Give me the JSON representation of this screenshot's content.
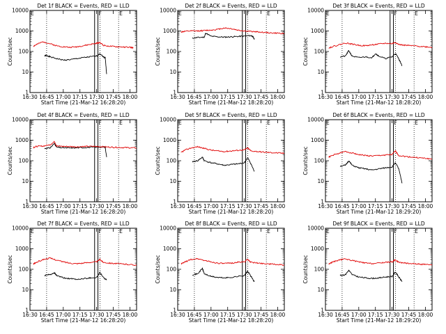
{
  "chart_data": [
    {
      "type": "line",
      "title": "Det 1f BLACK = Events, RED = LLD",
      "xlabel": "Start Time (21-Mar-12 16:28:20)",
      "ylabel": "Counts/sec",
      "xticks": [
        "16:30",
        "16:45",
        "17:00",
        "17:15",
        "17:30",
        "17:45",
        "18:00"
      ],
      "yticks": [
        "1",
        "10",
        "100",
        "1000",
        "10000"
      ],
      "ylim": [
        1,
        10000
      ],
      "yscale": "log",
      "markers": [
        "F",
        "E"
      ],
      "series": [
        {
          "name": "Events",
          "color": "#000000",
          "x": [
            16.72,
            16.75,
            16.8,
            16.9,
            17.0,
            17.1,
            17.2,
            17.3,
            17.4,
            17.5,
            17.55,
            17.6,
            17.63,
            17.65
          ],
          "values": [
            60,
            65,
            55,
            45,
            38,
            40,
            45,
            50,
            55,
            60,
            80,
            55,
            50,
            8
          ]
        },
        {
          "name": "LLD",
          "color": "#e00000",
          "x": [
            16.55,
            16.6,
            16.7,
            16.8,
            16.9,
            17.0,
            17.1,
            17.2,
            17.3,
            17.4,
            17.5,
            17.55,
            17.6,
            17.7,
            17.8,
            17.9,
            18.0,
            18.05
          ],
          "values": [
            180,
            220,
            300,
            240,
            190,
            170,
            160,
            170,
            190,
            220,
            250,
            280,
            200,
            180,
            170,
            165,
            160,
            150
          ]
        }
      ]
    },
    {
      "type": "line",
      "title": "Det 2f BLACK = Events, RED = LLD",
      "xlabel": "Start Time (21-Mar-12 18:28:20)",
      "ylabel": "Counts/sec",
      "xticks": [
        "16:30",
        "16:45",
        "17:00",
        "17:15",
        "17:30",
        "17:45",
        "18:00"
      ],
      "yticks": [
        "1",
        "10",
        "100",
        "1000",
        "10000"
      ],
      "ylim": [
        1,
        10000
      ],
      "yscale": "log",
      "markers": [
        "F",
        "E"
      ],
      "series": [
        {
          "name": "Events",
          "color": "#000000",
          "x": [
            16.72,
            16.8,
            16.9,
            16.92,
            17.0,
            17.1,
            17.2,
            17.3,
            17.4,
            17.5,
            17.6,
            17.63,
            17.65
          ],
          "values": [
            450,
            480,
            500,
            800,
            550,
            520,
            500,
            520,
            540,
            560,
            600,
            520,
            400
          ]
        },
        {
          "name": "LLD",
          "color": "#e00000",
          "x": [
            16.55,
            16.6,
            16.7,
            16.8,
            16.9,
            17.0,
            17.1,
            17.2,
            17.3,
            17.4,
            17.5,
            17.6,
            17.7,
            17.8,
            17.9,
            18.0,
            18.1
          ],
          "values": [
            900,
            950,
            1000,
            1000,
            1050,
            1100,
            1200,
            1400,
            1300,
            1100,
            1000,
            950,
            900,
            850,
            800,
            780,
            750
          ]
        }
      ]
    },
    {
      "type": "line",
      "title": "Det 3f BLACK = Events, RED = LLD",
      "xlabel": "Start Time (21-Mar-12 18:28:20)",
      "ylabel": "Counts/sec",
      "xticks": [
        "16:30",
        "16:45",
        "17:00",
        "17:15",
        "17:30",
        "17:45",
        "18:00"
      ],
      "yticks": [
        "1",
        "10",
        "100",
        "1000",
        "10000"
      ],
      "ylim": [
        1,
        10000
      ],
      "yscale": "log",
      "markers": [
        "F",
        "E"
      ],
      "series": [
        {
          "name": "Events",
          "color": "#000000",
          "x": [
            16.72,
            16.8,
            16.85,
            16.9,
            17.0,
            17.1,
            17.2,
            17.25,
            17.3,
            17.4,
            17.5,
            17.55,
            17.6,
            17.65
          ],
          "values": [
            55,
            60,
            110,
            60,
            50,
            55,
            50,
            80,
            60,
            45,
            55,
            80,
            45,
            20
          ]
        },
        {
          "name": "LLD",
          "color": "#e00000",
          "x": [
            16.55,
            16.6,
            16.7,
            16.8,
            16.9,
            17.0,
            17.1,
            17.2,
            17.3,
            17.4,
            17.5,
            17.55,
            17.6,
            17.7,
            17.8,
            17.9,
            18.0,
            18.1
          ],
          "values": [
            150,
            170,
            210,
            260,
            230,
            200,
            190,
            210,
            230,
            250,
            240,
            280,
            220,
            200,
            190,
            180,
            170,
            160
          ]
        }
      ]
    },
    {
      "type": "line",
      "title": "Det 4f BLACK = Events, RED = LLD",
      "xlabel": "Start Time (21-Mar-12 16:28:20)",
      "ylabel": "Counts/sec",
      "xticks": [
        "16:30",
        "16:45",
        "17:00",
        "17:15",
        "17:30",
        "17:45",
        "18:00"
      ],
      "yticks": [
        "1",
        "10",
        "100",
        "1000",
        "10000"
      ],
      "ylim": [
        1,
        10000
      ],
      "yscale": "log",
      "markers": [
        "F",
        "E"
      ],
      "series": [
        {
          "name": "Events",
          "color": "#000000",
          "x": [
            16.72,
            16.8,
            16.87,
            16.9,
            17.0,
            17.1,
            17.2,
            17.3,
            17.4,
            17.5,
            17.6,
            17.63,
            17.65
          ],
          "values": [
            400,
            420,
            700,
            450,
            430,
            420,
            430,
            440,
            450,
            460,
            470,
            450,
            150
          ]
        },
        {
          "name": "LLD",
          "color": "#e00000",
          "x": [
            16.55,
            16.6,
            16.7,
            16.8,
            16.87,
            16.9,
            17.0,
            17.1,
            17.2,
            17.3,
            17.4,
            17.5,
            17.6,
            17.7,
            17.8,
            17.9,
            18.0,
            18.1
          ],
          "values": [
            450,
            500,
            520,
            600,
            850,
            520,
            500,
            490,
            480,
            490,
            500,
            500,
            480,
            460,
            450,
            440,
            430,
            420
          ]
        }
      ]
    },
    {
      "type": "line",
      "title": "Det 5f BLACK = Events, RED = LLD",
      "xlabel": "Start Time (21-Mar-12 18:28:20)",
      "ylabel": "Counts/sec",
      "xticks": [
        "16:30",
        "16:45",
        "17:00",
        "17:15",
        "17:30",
        "17:45",
        "18:00"
      ],
      "yticks": [
        "1",
        "10",
        "100",
        "1000",
        "10000"
      ],
      "ylim": [
        1,
        10000
      ],
      "yscale": "log",
      "markers": [
        "F",
        "E"
      ],
      "series": [
        {
          "name": "Events",
          "color": "#000000",
          "x": [
            16.72,
            16.8,
            16.87,
            16.9,
            17.0,
            17.1,
            17.2,
            17.3,
            17.4,
            17.5,
            17.55,
            17.6,
            17.65
          ],
          "values": [
            90,
            100,
            150,
            100,
            80,
            70,
            60,
            65,
            70,
            80,
            140,
            70,
            30
          ]
        },
        {
          "name": "LLD",
          "color": "#e00000",
          "x": [
            16.55,
            16.6,
            16.7,
            16.8,
            16.9,
            17.0,
            17.1,
            17.2,
            17.3,
            17.4,
            17.5,
            17.55,
            17.6,
            17.7,
            17.8,
            17.9,
            18.0,
            18.1
          ],
          "values": [
            250,
            320,
            420,
            480,
            400,
            330,
            300,
            280,
            300,
            320,
            340,
            420,
            300,
            280,
            260,
            250,
            240,
            230
          ]
        }
      ]
    },
    {
      "type": "line",
      "title": "Det 6f BLACK = Events, RED = LLD",
      "xlabel": "Start Time (21-Mar-12 18:29:20)",
      "ylabel": "Counts/sec",
      "xticks": [
        "16:30",
        "16:45",
        "17:00",
        "17:15",
        "17:30",
        "17:45",
        "18:00"
      ],
      "yticks": [
        "1",
        "10",
        "100",
        "1000",
        "10000"
      ],
      "ylim": [
        1,
        10000
      ],
      "yscale": "log",
      "markers": [
        "F",
        "E"
      ],
      "series": [
        {
          "name": "Events",
          "color": "#000000",
          "x": [
            16.72,
            16.8,
            16.85,
            16.9,
            17.0,
            17.1,
            17.2,
            17.3,
            17.4,
            17.5,
            17.55,
            17.6,
            17.65
          ],
          "values": [
            55,
            60,
            100,
            60,
            45,
            40,
            35,
            40,
            45,
            50,
            80,
            40,
            8
          ]
        },
        {
          "name": "LLD",
          "color": "#e00000",
          "x": [
            16.55,
            16.6,
            16.7,
            16.8,
            16.9,
            17.0,
            17.1,
            17.2,
            17.3,
            17.4,
            17.5,
            17.55,
            17.6,
            17.7,
            17.8,
            17.9,
            18.0,
            18.1
          ],
          "values": [
            150,
            180,
            230,
            280,
            240,
            200,
            180,
            170,
            180,
            190,
            200,
            300,
            180,
            160,
            150,
            140,
            130,
            120
          ]
        }
      ]
    },
    {
      "type": "line",
      "title": "Det 7f BLACK = Events, RED = LLD",
      "xlabel": "Start Time (21-Mar-12 16:28:20)",
      "ylabel": "Counts/sec",
      "xticks": [
        "16:30",
        "16:45",
        "17:00",
        "17:15",
        "17:30",
        "17:45",
        "18:00"
      ],
      "yticks": [
        "1",
        "10",
        "100",
        "1000",
        "10000"
      ],
      "ylim": [
        1,
        10000
      ],
      "yscale": "log",
      "markers": [
        "F",
        "E"
      ],
      "series": [
        {
          "name": "Events",
          "color": "#000000",
          "x": [
            16.72,
            16.8,
            16.87,
            16.9,
            17.0,
            17.1,
            17.2,
            17.3,
            17.4,
            17.5,
            17.55,
            17.6,
            17.65
          ],
          "values": [
            50,
            55,
            65,
            50,
            38,
            35,
            32,
            35,
            38,
            40,
            70,
            40,
            30
          ]
        },
        {
          "name": "LLD",
          "color": "#e00000",
          "x": [
            16.55,
            16.6,
            16.7,
            16.8,
            16.9,
            17.0,
            17.1,
            17.2,
            17.3,
            17.4,
            17.5,
            17.55,
            17.6,
            17.7,
            17.8,
            17.9,
            18.0,
            18.1
          ],
          "values": [
            180,
            220,
            300,
            350,
            280,
            230,
            200,
            190,
            200,
            220,
            230,
            300,
            220,
            200,
            190,
            180,
            170,
            160
          ]
        }
      ]
    },
    {
      "type": "line",
      "title": "Det 8f BLACK = Events, RED = LLD",
      "xlabel": "Start Time (21-Mar-12 18:28:20)",
      "ylabel": "Counts/sec",
      "xticks": [
        "16:30",
        "16:45",
        "17:00",
        "17:15",
        "17:30",
        "17:45",
        "18:00"
      ],
      "yticks": [
        "1",
        "10",
        "100",
        "1000",
        "10000"
      ],
      "ylim": [
        1,
        10000
      ],
      "yscale": "log",
      "markers": [
        "F",
        "E"
      ],
      "series": [
        {
          "name": "Events",
          "color": "#000000",
          "x": [
            16.72,
            16.8,
            16.87,
            16.9,
            17.0,
            17.1,
            17.2,
            17.3,
            17.4,
            17.5,
            17.55,
            17.6,
            17.65
          ],
          "values": [
            55,
            60,
            110,
            60,
            45,
            40,
            38,
            40,
            45,
            50,
            80,
            45,
            25
          ]
        },
        {
          "name": "LLD",
          "color": "#e00000",
          "x": [
            16.55,
            16.6,
            16.7,
            16.8,
            16.9,
            17.0,
            17.1,
            17.2,
            17.3,
            17.4,
            17.5,
            17.55,
            17.6,
            17.7,
            17.8,
            17.9,
            18.0,
            18.1
          ],
          "values": [
            180,
            220,
            300,
            330,
            270,
            230,
            200,
            190,
            200,
            220,
            230,
            300,
            220,
            200,
            190,
            180,
            170,
            160
          ]
        }
      ]
    },
    {
      "type": "line",
      "title": "Det 9f BLACK = Events, RED = LLD",
      "xlabel": "Start Time (21-Mar-12 18:29:20)",
      "ylabel": "Counts/sec",
      "xticks": [
        "16:30",
        "16:45",
        "17:00",
        "17:15",
        "17:30",
        "17:45",
        "18:00"
      ],
      "yticks": [
        "1",
        "10",
        "100",
        "1000",
        "10000"
      ],
      "ylim": [
        1,
        10000
      ],
      "yscale": "log",
      "markers": [
        "F",
        "E"
      ],
      "series": [
        {
          "name": "Events",
          "color": "#000000",
          "x": [
            16.72,
            16.8,
            16.85,
            16.9,
            17.0,
            17.1,
            17.2,
            17.3,
            17.4,
            17.5,
            17.55,
            17.6,
            17.65
          ],
          "values": [
            50,
            55,
            90,
            55,
            42,
            38,
            36,
            38,
            42,
            45,
            75,
            42,
            25
          ]
        },
        {
          "name": "LLD",
          "color": "#e00000",
          "x": [
            16.55,
            16.6,
            16.7,
            16.8,
            16.9,
            17.0,
            17.1,
            17.2,
            17.3,
            17.4,
            17.5,
            17.55,
            17.6,
            17.7,
            17.8,
            17.9,
            18.0,
            18.1
          ],
          "values": [
            180,
            220,
            280,
            320,
            270,
            230,
            200,
            190,
            200,
            220,
            230,
            290,
            220,
            200,
            190,
            180,
            170,
            160
          ]
        }
      ]
    }
  ]
}
